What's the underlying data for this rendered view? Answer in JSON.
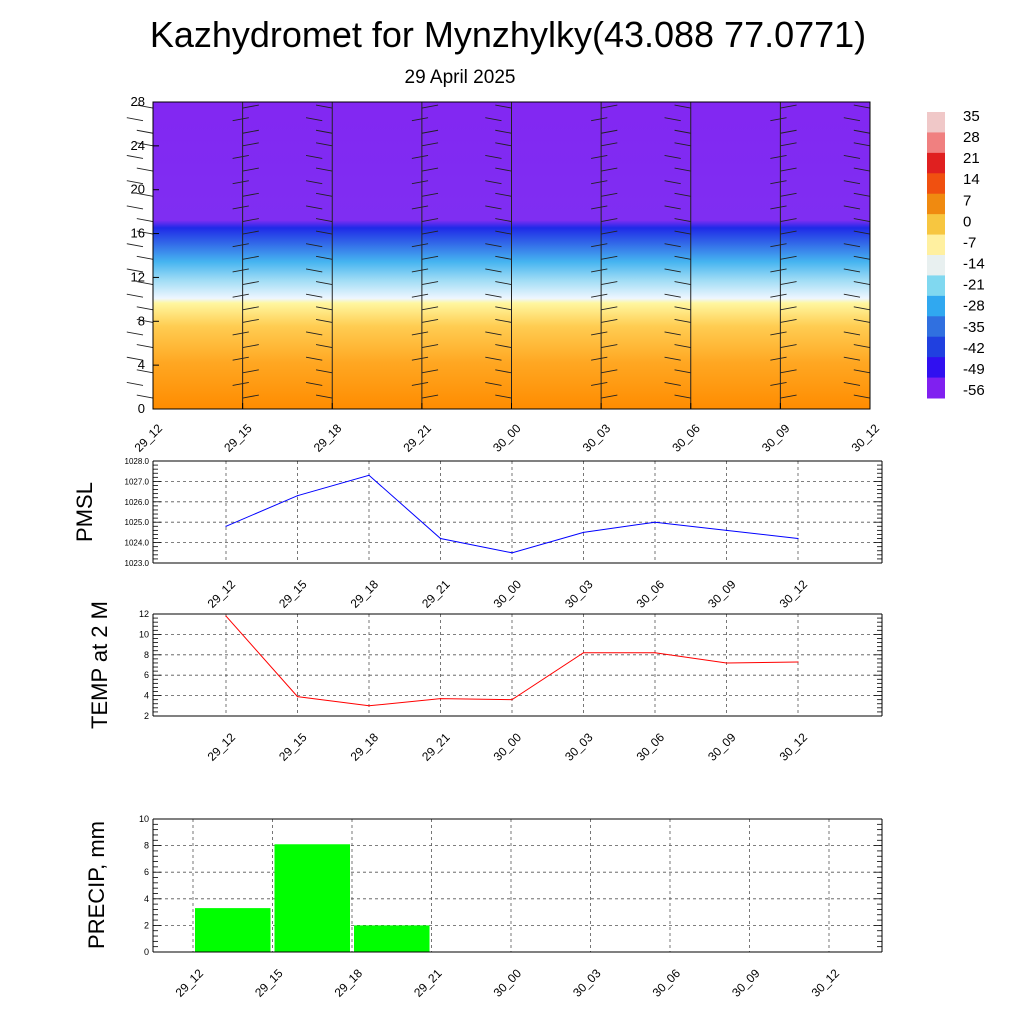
{
  "title": "Kazhydromet for Mynzhylky(43.088 77.0771)",
  "subtitle": "29 April 2025",
  "time_labels": [
    "29_12",
    "29_15",
    "29_18",
    "29_21",
    "30_00",
    "30_03",
    "30_06",
    "30_09",
    "30_12"
  ],
  "chart_data": [
    {
      "type": "heatmap",
      "name": "temperature-height cross-section",
      "x": [
        "29_12",
        "29_15",
        "29_18",
        "29_21",
        "30_00",
        "30_03",
        "30_06",
        "30_09",
        "30_12"
      ],
      "ylim": [
        0,
        28
      ],
      "yticks": [
        "0",
        "4",
        "8",
        "12",
        "16",
        "20",
        "24",
        "28"
      ],
      "colorbar_labels": [
        "35",
        "28",
        "21",
        "14",
        "7",
        "0",
        "-7",
        "-14",
        "-21",
        "-28",
        "-35",
        "-42",
        "-49",
        "-56"
      ],
      "colorbar_colors": [
        "#f0c8c8",
        "#f08080",
        "#e02020",
        "#f05010",
        "#f08a10",
        "#f7c640",
        "#fff0a0",
        "#e8f0f0",
        "#80d8f0",
        "#30a8f0",
        "#3070e0",
        "#2040e0",
        "#3010f0",
        "#8020f0"
      ],
      "zones": [
        {
          "from": 0,
          "to": 10,
          "range": "7 to -7"
        },
        {
          "from": 10,
          "to": 17,
          "range": "-14 to -49"
        },
        {
          "from": 17,
          "to": 28,
          "range": "-56"
        }
      ],
      "wind_barbs": true
    },
    {
      "type": "line",
      "ylabel": "PMSL",
      "categories": [
        "29_12",
        "29_15",
        "29_18",
        "29_21",
        "30_00",
        "30_03",
        "30_06",
        "30_09",
        "30_12"
      ],
      "values": [
        1024.8,
        1026.3,
        1027.3,
        1024.2,
        1023.5,
        1024.5,
        1025.0,
        1024.6,
        1024.2
      ],
      "ylim": [
        1023.0,
        1028.0
      ],
      "yticks": [
        "1023.0",
        "1024.0",
        "1025.0",
        "1026.0",
        "1027.0",
        "1028.0"
      ],
      "color": "#0000ff",
      "grid": true
    },
    {
      "type": "line",
      "ylabel": "TEMP at 2 M",
      "categories": [
        "29_12",
        "29_15",
        "29_18",
        "29_21",
        "30_00",
        "30_03",
        "30_06",
        "30_09",
        "30_12"
      ],
      "values": [
        11.8,
        3.9,
        3.0,
        3.7,
        3.6,
        8.2,
        8.2,
        7.2,
        7.3
      ],
      "ylim": [
        2,
        12
      ],
      "yticks": [
        "2",
        "4",
        "6",
        "8",
        "10",
        "12"
      ],
      "color": "#ff0000",
      "grid": true
    },
    {
      "type": "bar",
      "ylabel": "PRECIP, mm",
      "categories": [
        "29_12",
        "29_15",
        "29_18",
        "29_21",
        "30_00",
        "30_03",
        "30_06",
        "30_09",
        "30_12"
      ],
      "values": [
        0,
        3.3,
        8.1,
        2.0,
        0,
        0,
        0,
        0,
        0
      ],
      "ylim": [
        0,
        10
      ],
      "yticks": [
        "0",
        "2",
        "4",
        "6",
        "8",
        "10"
      ],
      "color": "#00ff00",
      "grid": true
    }
  ]
}
